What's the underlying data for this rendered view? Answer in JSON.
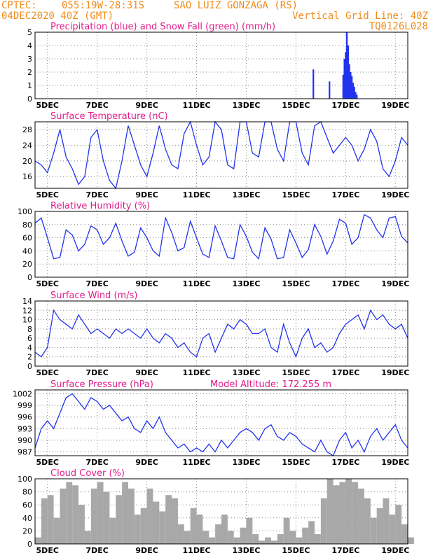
{
  "header": {
    "line1_left": "CPTEC:",
    "line1_center": "055:19W-28:31S",
    "line1_right": "SAO LUIZ GONZAGA (RS)",
    "line2_left": "04DEC2020 40Z (GMT)",
    "line2_right": "Vertical Grid Line: 40Z",
    "line3_right": "TQ0126L028"
  },
  "x_day_labels": [
    "5DEC",
    "7DEC",
    "9DEC",
    "11DEC",
    "13DEC",
    "15DEC",
    "17DEC",
    "19DEC"
  ],
  "colors": {
    "blue": "#2233ee",
    "green": "#22aa22",
    "gray": "#a8a8a8",
    "title": "#e21c8c",
    "header": "#f08c1e"
  },
  "chart_data": [
    {
      "id": "precip",
      "type": "bar",
      "title": "Precipitation (blue) and Snow Fall (green) (mm/h)",
      "ylim": [
        0,
        5
      ],
      "yticks": [
        "0",
        "1",
        "2",
        "3",
        "4",
        "5"
      ],
      "x_unit": "days since 04DEC2020",
      "series": [
        {
          "name": "Precipitation",
          "x": [
            11.2,
            11.85,
            12.4,
            12.45,
            12.5,
            12.55,
            12.6,
            12.65,
            12.7,
            12.75,
            12.8,
            12.85,
            12.9,
            12.95
          ],
          "values": [
            2.2,
            1.3,
            1.8,
            3.0,
            3.5,
            5.0,
            4.0,
            2.6,
            2.0,
            1.7,
            1.2,
            0.9,
            0.5,
            0.3
          ]
        },
        {
          "name": "Snow Fall",
          "x": [],
          "values": []
        }
      ]
    },
    {
      "id": "temp",
      "type": "line",
      "title": "Surface Temperature (nC)",
      "ylim": [
        13,
        30
      ],
      "yticks": [
        "16",
        "20",
        "24",
        "28"
      ],
      "x": [
        0.0,
        0.25,
        0.5,
        0.75,
        1.0,
        1.25,
        1.5,
        1.75,
        2.0,
        2.25,
        2.5,
        2.75,
        3.0,
        3.25,
        3.5,
        3.75,
        4.0,
        4.25,
        4.5,
        4.75,
        5.0,
        5.25,
        5.5,
        5.75,
        6.0,
        6.25,
        6.5,
        6.75,
        7.0,
        7.25,
        7.5,
        7.75,
        8.0,
        8.25,
        8.5,
        8.75,
        9.0,
        9.25,
        9.5,
        9.75,
        10.0,
        10.25,
        10.5,
        10.75,
        11.0,
        11.25,
        11.5,
        11.75,
        12.0,
        12.25,
        12.5,
        12.75,
        13.0,
        13.25,
        13.5,
        13.75,
        14.0,
        14.25,
        14.5,
        14.75,
        15.0
      ],
      "values": [
        20,
        19,
        17,
        22,
        28,
        21,
        18,
        14,
        16,
        26,
        28,
        20,
        15,
        13,
        20,
        29,
        24,
        19,
        16,
        22,
        29,
        23,
        19,
        18,
        27,
        30,
        24,
        19,
        21,
        30,
        28,
        19,
        18,
        30,
        30,
        22,
        21,
        30,
        30,
        23,
        20,
        30,
        30,
        22,
        19,
        29,
        30,
        26,
        22,
        24,
        26,
        24,
        20,
        23,
        28,
        25,
        18,
        16,
        20,
        26,
        24
      ]
    },
    {
      "id": "rh",
      "type": "line",
      "title": "Relative Humidity (%)",
      "ylim": [
        0,
        100
      ],
      "yticks": [
        "0",
        "20",
        "40",
        "60",
        "80",
        "100"
      ],
      "x": [
        0.0,
        0.25,
        0.5,
        0.75,
        1.0,
        1.25,
        1.5,
        1.75,
        2.0,
        2.25,
        2.5,
        2.75,
        3.0,
        3.25,
        3.5,
        3.75,
        4.0,
        4.25,
        4.5,
        4.75,
        5.0,
        5.25,
        5.5,
        5.75,
        6.0,
        6.25,
        6.5,
        6.75,
        7.0,
        7.25,
        7.5,
        7.75,
        8.0,
        8.25,
        8.5,
        8.75,
        9.0,
        9.25,
        9.5,
        9.75,
        10.0,
        10.25,
        10.5,
        10.75,
        11.0,
        11.25,
        11.5,
        11.75,
        12.0,
        12.25,
        12.5,
        12.75,
        13.0,
        13.25,
        13.5,
        13.75,
        14.0,
        14.25,
        14.5,
        14.75,
        15.0
      ],
      "values": [
        82,
        90,
        60,
        28,
        30,
        72,
        64,
        40,
        50,
        78,
        72,
        50,
        60,
        82,
        55,
        32,
        38,
        75,
        60,
        40,
        32,
        90,
        68,
        40,
        45,
        85,
        60,
        35,
        30,
        78,
        55,
        30,
        28,
        80,
        62,
        38,
        28,
        75,
        58,
        28,
        30,
        72,
        52,
        30,
        42,
        80,
        62,
        35,
        55,
        88,
        82,
        50,
        60,
        95,
        90,
        72,
        60,
        90,
        92,
        62,
        52
      ]
    },
    {
      "id": "wind",
      "type": "line",
      "title": "Surface Wind (m/s)",
      "ylim": [
        0,
        14
      ],
      "yticks": [
        "0",
        "2",
        "4",
        "6",
        "8",
        "10",
        "12",
        "14"
      ],
      "x": [
        0.0,
        0.25,
        0.5,
        0.75,
        1.0,
        1.25,
        1.5,
        1.75,
        2.0,
        2.25,
        2.5,
        2.75,
        3.0,
        3.25,
        3.5,
        3.75,
        4.0,
        4.25,
        4.5,
        4.75,
        5.0,
        5.25,
        5.5,
        5.75,
        6.0,
        6.25,
        6.5,
        6.75,
        7.0,
        7.25,
        7.5,
        7.75,
        8.0,
        8.25,
        8.5,
        8.75,
        9.0,
        9.25,
        9.5,
        9.75,
        10.0,
        10.25,
        10.5,
        10.75,
        11.0,
        11.25,
        11.5,
        11.75,
        12.0,
        12.25,
        12.5,
        12.75,
        13.0,
        13.25,
        13.5,
        13.75,
        14.0,
        14.25,
        14.5,
        14.75,
        15.0
      ],
      "values": [
        3,
        2,
        4,
        12,
        10,
        9,
        8,
        11,
        9,
        7,
        8,
        7,
        6,
        8,
        7,
        8,
        7,
        6,
        8,
        6,
        5,
        7,
        6,
        4,
        5,
        3,
        2,
        6,
        7,
        3,
        6,
        9,
        8,
        10,
        9,
        7,
        7,
        8,
        4,
        3,
        9,
        5,
        2,
        6,
        8,
        4,
        5,
        3,
        4,
        7,
        9,
        10,
        11,
        8,
        12,
        10,
        11,
        9,
        8,
        9,
        6
      ]
    },
    {
      "id": "pressure",
      "type": "line",
      "title": "Surface Pressure (hPa)",
      "annotation": "Model Altitude: 172.255 m",
      "ylim": [
        986,
        1003
      ],
      "yticks": [
        "987",
        "990",
        "993",
        "996",
        "999",
        "1002"
      ],
      "x": [
        0.0,
        0.25,
        0.5,
        0.75,
        1.0,
        1.25,
        1.5,
        1.75,
        2.0,
        2.25,
        2.5,
        2.75,
        3.0,
        3.25,
        3.5,
        3.75,
        4.0,
        4.25,
        4.5,
        4.75,
        5.0,
        5.25,
        5.5,
        5.75,
        6.0,
        6.25,
        6.5,
        6.75,
        7.0,
        7.25,
        7.5,
        7.75,
        8.0,
        8.25,
        8.5,
        8.75,
        9.0,
        9.25,
        9.5,
        9.75,
        10.0,
        10.25,
        10.5,
        10.75,
        11.0,
        11.25,
        11.5,
        11.75,
        12.0,
        12.25,
        12.5,
        12.75,
        13.0,
        13.25,
        13.5,
        13.75,
        14.0,
        14.25,
        14.5,
        14.75,
        15.0
      ],
      "values": [
        988,
        993,
        995,
        993,
        997,
        1001,
        1002,
        1000,
        998,
        1001,
        1000,
        998,
        999,
        997,
        995,
        996,
        993,
        992,
        995,
        993,
        996,
        992,
        990,
        988,
        989,
        987,
        988,
        987,
        989,
        987,
        990,
        988,
        990,
        992,
        993,
        992,
        990,
        993,
        994,
        991,
        990,
        992,
        991,
        989,
        988,
        987,
        990,
        987,
        986,
        990,
        992,
        988,
        990,
        987,
        991,
        993,
        990,
        992,
        994,
        990,
        988
      ]
    },
    {
      "id": "cloud",
      "type": "bar",
      "title": "Cloud Cover (%)",
      "ylim": [
        0,
        100
      ],
      "yticks": [
        "0",
        "20",
        "40",
        "60",
        "80",
        "100"
      ],
      "x": [
        0.0,
        0.25,
        0.5,
        0.75,
        1.0,
        1.25,
        1.5,
        1.75,
        2.0,
        2.25,
        2.5,
        2.75,
        3.0,
        3.25,
        3.5,
        3.75,
        4.0,
        4.25,
        4.5,
        4.75,
        5.0,
        5.25,
        5.5,
        5.75,
        6.0,
        6.25,
        6.5,
        6.75,
        7.0,
        7.25,
        7.5,
        7.75,
        8.0,
        8.25,
        8.5,
        8.75,
        9.0,
        9.25,
        9.5,
        9.75,
        10.0,
        10.25,
        10.5,
        10.75,
        11.0,
        11.25,
        11.5,
        11.75,
        12.0,
        12.25,
        12.5,
        12.75,
        13.0,
        13.25,
        13.5,
        13.75,
        14.0,
        14.25,
        14.5,
        14.75,
        15.0
      ],
      "values": [
        10,
        70,
        75,
        40,
        85,
        95,
        90,
        60,
        20,
        85,
        95,
        80,
        40,
        75,
        95,
        85,
        45,
        55,
        85,
        65,
        50,
        75,
        70,
        30,
        20,
        55,
        45,
        20,
        10,
        30,
        45,
        20,
        10,
        25,
        40,
        15,
        5,
        10,
        5,
        15,
        40,
        20,
        10,
        25,
        35,
        15,
        70,
        100,
        90,
        95,
        100,
        95,
        85,
        70,
        40,
        55,
        70,
        45,
        60,
        30,
        10
      ]
    }
  ]
}
